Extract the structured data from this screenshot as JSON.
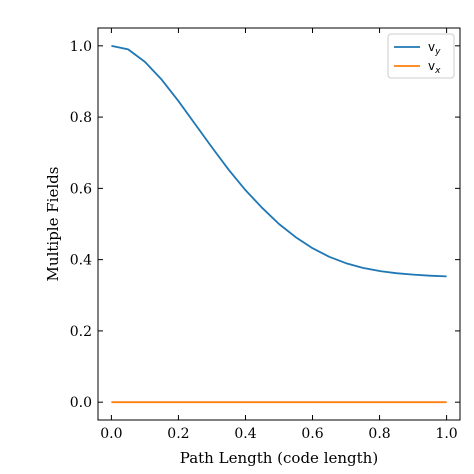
{
  "chart_data": {
    "type": "line",
    "title": "",
    "xlabel": "Path Length  (code length)",
    "ylabel": "Multiple Fields",
    "xlim": [
      -0.04,
      1.04
    ],
    "ylim": [
      -0.05,
      1.05
    ],
    "xticks": [
      0.0,
      0.2,
      0.4,
      0.6,
      0.8,
      1.0
    ],
    "xtick_labels": [
      "0.0",
      "0.2",
      "0.4",
      "0.6",
      "0.8",
      "1.0"
    ],
    "yticks": [
      0.0,
      0.2,
      0.4,
      0.6,
      0.8,
      1.0
    ],
    "ytick_labels": [
      "0.0",
      "0.2",
      "0.4",
      "0.6",
      "0.8",
      "1.0"
    ],
    "grid": false,
    "legend_position": "top-right",
    "series": [
      {
        "name": "v_y",
        "legend_base": "v",
        "legend_sub": "y",
        "color": "#1f77b4",
        "x": [
          0.0,
          0.05,
          0.1,
          0.15,
          0.2,
          0.25,
          0.3,
          0.35,
          0.4,
          0.45,
          0.5,
          0.55,
          0.6,
          0.65,
          0.7,
          0.75,
          0.8,
          0.85,
          0.9,
          0.95,
          1.0
        ],
        "y": [
          1.0,
          0.99,
          0.955,
          0.905,
          0.845,
          0.78,
          0.715,
          0.652,
          0.595,
          0.545,
          0.5,
          0.463,
          0.432,
          0.408,
          0.39,
          0.377,
          0.368,
          0.362,
          0.358,
          0.355,
          0.353
        ]
      },
      {
        "name": "v_x",
        "legend_base": "v",
        "legend_sub": "x",
        "color": "#ff7f0e",
        "x": [
          0.0,
          0.25,
          0.5,
          0.75,
          1.0
        ],
        "y": [
          0.0,
          0.0,
          0.0,
          0.0,
          0.0
        ]
      }
    ]
  }
}
